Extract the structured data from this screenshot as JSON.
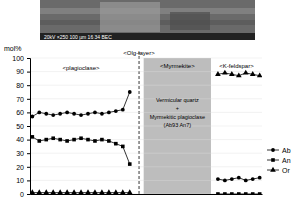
{
  "chart_data": {
    "type": "line",
    "y_label": "mol%",
    "photo_caption": "20kV  ×250  100 µm  16 34  BEC",
    "x": [
      1,
      4,
      7,
      10,
      13,
      16,
      19,
      22,
      25,
      28,
      31,
      34,
      37,
      40,
      43,
      63,
      81,
      84,
      87,
      90,
      93,
      96,
      99
    ],
    "xlim": [
      0,
      100
    ],
    "ylim": [
      0,
      100
    ],
    "yticks": [
      0,
      10,
      20,
      30,
      40,
      50,
      60,
      70,
      80,
      90,
      100
    ],
    "tick_labels": "y",
    "legend": "right",
    "series": [
      {
        "name": "Ab",
        "color": "#000000",
        "marker": "circle",
        "values": [
          57,
          60,
          59,
          58,
          59,
          60,
          59,
          58,
          59,
          60,
          59,
          60,
          61,
          62,
          75,
          null,
          11,
          10,
          11,
          12,
          10,
          11,
          12
        ]
      },
      {
        "name": "An",
        "color": "#000000",
        "marker": "square",
        "values": [
          42,
          39,
          40,
          41,
          40,
          39,
          40,
          41,
          40,
          39,
          40,
          39,
          37,
          35,
          22,
          null,
          0,
          0,
          0,
          0,
          0,
          0,
          0
        ]
      },
      {
        "name": "Or",
        "color": "#000000",
        "marker": "triangle",
        "values": [
          1,
          1,
          1,
          1,
          1,
          1,
          1,
          1,
          1,
          1,
          1,
          1,
          1,
          1,
          1,
          null,
          88,
          89,
          88,
          87,
          89,
          88,
          87
        ]
      }
    ],
    "shaded_region": [
      49,
      78
    ],
    "reference_line": 47,
    "annotations": [
      {
        "text": "<plagioclase>",
        "x": 22,
        "y": 91
      },
      {
        "text": "<Olg-layer>",
        "x": 47,
        "y": 102
      },
      {
        "text": "<Myrmekite>",
        "x": 63.5,
        "y": 93
      },
      {
        "text": "Vermicular quartz",
        "x": 63.5,
        "y": 68
      },
      {
        "text": "+",
        "x": 63.5,
        "y": 62
      },
      {
        "text": "Myrmekitic plagioclase",
        "x": 63.5,
        "y": 55
      },
      {
        "text": "(Ab93 An7)",
        "x": 63.5,
        "y": 49
      },
      {
        "text": "<K-feldspar>",
        "x": 89,
        "y": 93
      }
    ]
  }
}
